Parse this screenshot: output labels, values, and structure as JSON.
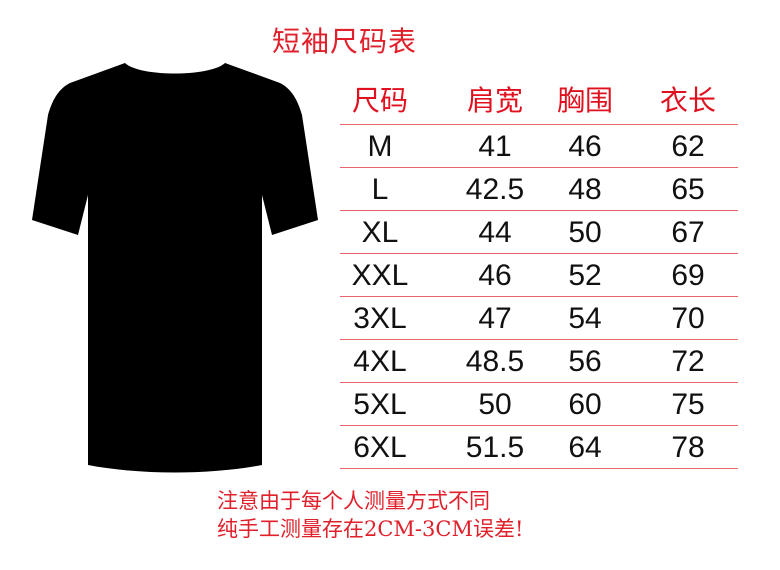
{
  "title": "短袖尺码表",
  "colors": {
    "accent": "#e0202a",
    "text": "#111111",
    "shirt": "#000000"
  },
  "shirt_icon": "t-shirt-silhouette",
  "table": {
    "headers": [
      "尺码",
      "肩宽",
      "胸围",
      "衣长"
    ],
    "rows": [
      [
        "M",
        "41",
        "46",
        "62"
      ],
      [
        "L",
        "42.5",
        "48",
        "65"
      ],
      [
        "XL",
        "44",
        "50",
        "67"
      ],
      [
        "XXL",
        "46",
        "52",
        "69"
      ],
      [
        "3XL",
        "47",
        "54",
        "70"
      ],
      [
        "4XL",
        "48.5",
        "56",
        "72"
      ],
      [
        "5XL",
        "50",
        "60",
        "75"
      ],
      [
        "6XL",
        "51.5",
        "64",
        "78"
      ]
    ]
  },
  "note": {
    "line1": "注意由于每个人测量方式不同",
    "line2": "纯手工测量存在2CM-3CM误差!"
  }
}
